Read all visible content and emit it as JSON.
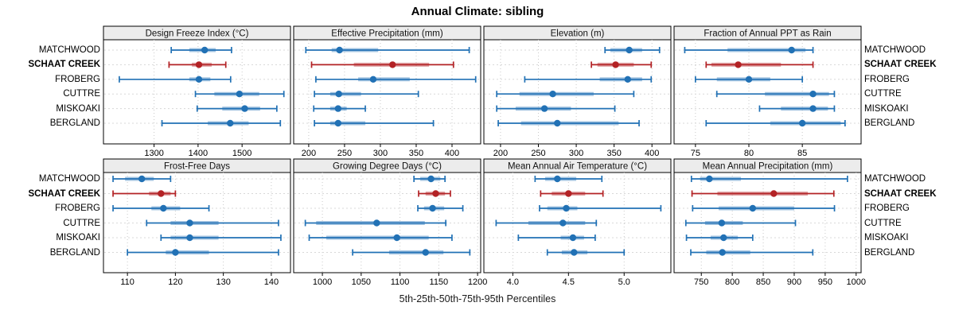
{
  "title": "Annual Climate: sibling",
  "footer": "5th-25th-50th-75th-95th Percentiles",
  "sites": [
    "MATCHWOOD",
    "SCHAAT CREEK",
    "FROBERG",
    "CUTTRE",
    "MISKOAKI",
    "BERGLAND"
  ],
  "highlight_site": "SCHAAT CREEK",
  "colors": {
    "normal": "#2171b5",
    "highlight": "#b32225",
    "band_opacity": 0.42,
    "gridline": "#c9c9c9",
    "row_guide": "#d8d8d8",
    "strip_bg": "#ececec",
    "panel_border": "#000000",
    "text": "#000000"
  },
  "chart_data": {
    "type": "dotplot-percentile-intervals",
    "percentiles": [
      5,
      25,
      50,
      75,
      95
    ],
    "rows": [
      "MATCHWOOD",
      "SCHAAT CREEK",
      "FROBERG",
      "CUTTRE",
      "MISKOAKI",
      "BERGLAND"
    ],
    "highlight_row_index": 1,
    "grid": "dashed-vertical-at-ticks",
    "legend_position": "none",
    "panels": [
      {
        "title": "Design Freeze Index (°C)",
        "grid_row": 1,
        "xlim": [
          1185,
          1610
        ],
        "ticks": [
          1300,
          1400,
          1500
        ],
        "tick_labels": [
          "1300",
          "1400",
          "1500"
        ],
        "values": [
          [
            1339,
            1380,
            1415,
            1440,
            1476
          ],
          [
            1334,
            1386,
            1402,
            1431,
            1463
          ],
          [
            1221,
            1380,
            1402,
            1428,
            1474
          ],
          [
            1394,
            1437,
            1494,
            1539,
            1595
          ],
          [
            1398,
            1455,
            1506,
            1541,
            1579
          ],
          [
            1318,
            1422,
            1473,
            1515,
            1587
          ]
        ]
      },
      {
        "title": "Effective Precipitation (mm)",
        "grid_row": 1,
        "xlim": [
          179,
          440
        ],
        "ticks": [
          200,
          250,
          300,
          350,
          400
        ],
        "tick_labels": [
          "200",
          "250",
          "300",
          "350",
          "400"
        ],
        "values": [
          [
            196,
            232,
            243,
            297,
            424
          ],
          [
            204,
            263,
            317,
            368,
            402
          ],
          [
            210,
            269,
            290,
            341,
            433
          ],
          [
            208,
            230,
            242,
            273,
            353
          ],
          [
            207,
            230,
            241,
            253,
            279
          ],
          [
            208,
            230,
            241,
            279,
            374
          ]
        ]
      },
      {
        "title": "Elevation (m)",
        "grid_row": 1,
        "xlim": [
          178,
          425
        ],
        "ticks": [
          200,
          250,
          300,
          350,
          400
        ],
        "tick_labels": [
          "200",
          "250",
          "300",
          "350",
          "400"
        ],
        "values": [
          [
            338,
            345,
            370,
            387,
            410
          ],
          [
            320,
            328,
            352,
            376,
            399
          ],
          [
            232,
            331,
            368,
            387,
            399
          ],
          [
            195,
            225,
            269,
            323,
            376
          ],
          [
            195,
            220,
            258,
            293,
            351
          ],
          [
            197,
            227,
            275,
            356,
            383
          ]
        ]
      },
      {
        "title": "Fraction of Annual PPT as Rain",
        "grid_row": 1,
        "xlim": [
          73,
          90.5
        ],
        "ticks": [
          75,
          80,
          85
        ],
        "tick_labels": [
          "75",
          "80",
          "85"
        ],
        "values": [
          [
            74,
            78,
            84,
            85.3,
            86
          ],
          [
            76,
            76.5,
            79,
            83,
            86
          ],
          [
            75,
            77,
            80,
            82,
            85
          ],
          [
            77,
            81.5,
            86,
            87.5,
            88
          ],
          [
            81,
            83,
            86,
            87.4,
            88
          ],
          [
            76,
            82,
            85,
            88.6,
            89
          ]
        ]
      },
      {
        "title": "Frost-Free Days",
        "grid_row": 2,
        "xlim": [
          105,
          144
        ],
        "ticks": [
          110,
          120,
          130,
          140
        ],
        "tick_labels": [
          "110",
          "120",
          "130",
          "140"
        ],
        "values": [
          [
            107,
            109.5,
            113,
            115.5,
            119
          ],
          [
            107,
            114.5,
            117,
            119,
            120
          ],
          [
            107,
            115,
            117.5,
            121,
            127
          ],
          [
            114,
            119,
            123,
            129,
            141.5
          ],
          [
            117,
            119,
            123,
            129,
            142
          ],
          [
            110,
            118,
            120,
            127,
            141.5
          ]
        ]
      },
      {
        "title": "Growing Degree Days (°C)",
        "grid_row": 2,
        "xlim": [
          963,
          1204
        ],
        "ticks": [
          1000,
          1050,
          1100,
          1150,
          1200
        ],
        "tick_labels": [
          "1000",
          "1050",
          "1100",
          "1150",
          "1200"
        ],
        "values": [
          [
            1118,
            1126,
            1140,
            1152,
            1158
          ],
          [
            1124,
            1133,
            1146,
            1158,
            1165
          ],
          [
            1123,
            1131,
            1142,
            1157,
            1181
          ],
          [
            978,
            992,
            1070,
            1132,
            1159
          ],
          [
            983,
            1005,
            1096,
            1137,
            1167
          ],
          [
            1039,
            1086,
            1133,
            1156,
            1190
          ]
        ]
      },
      {
        "title": "Mean Annual Air Temperature (°C)",
        "grid_row": 2,
        "xlim": [
          3.74,
          5.42
        ],
        "ticks": [
          4.0,
          4.5,
          5.0
        ],
        "tick_labels": [
          "4.0",
          "4.5",
          "5.0"
        ],
        "values": [
          [
            4.2,
            4.29,
            4.4,
            4.57,
            4.8
          ],
          [
            4.25,
            4.35,
            4.5,
            4.65,
            4.81
          ],
          [
            4.24,
            4.31,
            4.48,
            4.58,
            5.33
          ],
          [
            3.85,
            4.14,
            4.45,
            4.65,
            4.75
          ],
          [
            4.05,
            4.43,
            4.54,
            4.64,
            4.74
          ],
          [
            4.31,
            4.44,
            4.55,
            4.67,
            5.0
          ]
        ]
      },
      {
        "title": "Mean Annual Precipitation (mm)",
        "grid_row": 2,
        "xlim": [
          706,
          1008
        ],
        "ticks": [
          750,
          800,
          850,
          900,
          950,
          1000
        ],
        "tick_labels": [
          "750",
          "800",
          "850",
          "900",
          "950",
          "1000"
        ],
        "values": [
          [
            734,
            748,
            763,
            814,
            986
          ],
          [
            735,
            776,
            867,
            922,
            964
          ],
          [
            736,
            778,
            833,
            900,
            965
          ],
          [
            725,
            756,
            783,
            817,
            902
          ],
          [
            726,
            765,
            786,
            809,
            833
          ],
          [
            733,
            758,
            784,
            829,
            930
          ]
        ]
      }
    ]
  }
}
